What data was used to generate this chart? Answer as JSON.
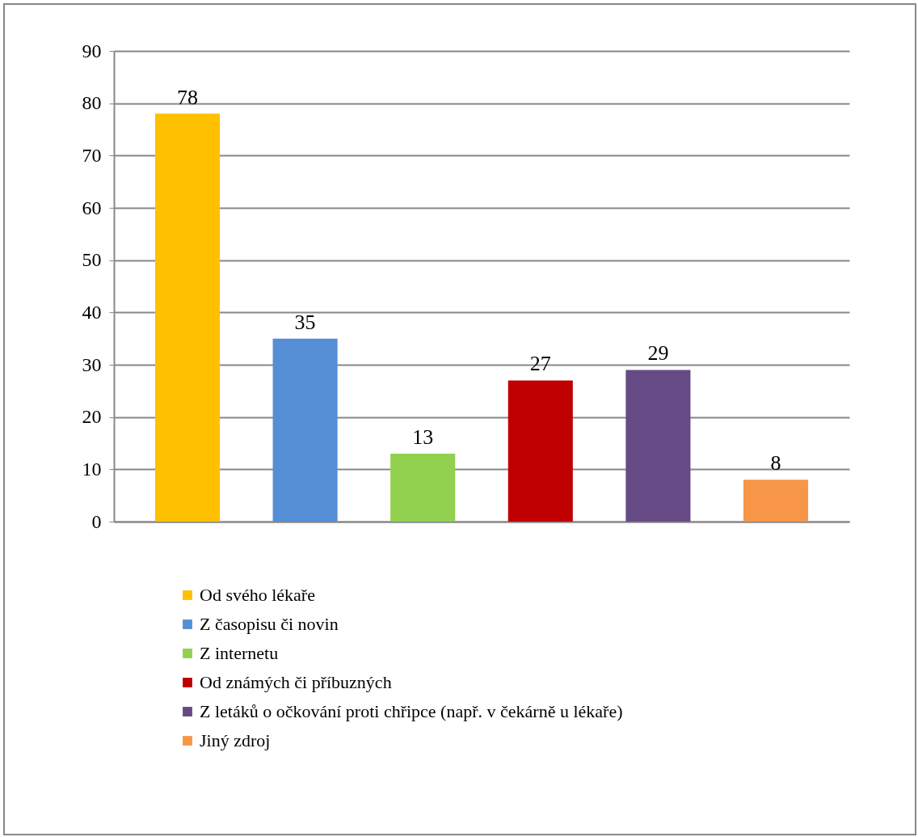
{
  "chart_data": {
    "type": "bar",
    "categories": [
      null
    ],
    "series": [
      {
        "name": "Od svého lékaře",
        "color": "#ffc000",
        "values": [
          78
        ]
      },
      {
        "name": "Z časopisu či novin",
        "color": "#558ed5",
        "values": [
          35
        ]
      },
      {
        "name": "Z internetu",
        "color": "#92d050",
        "values": [
          13
        ]
      },
      {
        "name": "Od známých či příbuzných",
        "color": "#c00000",
        "values": [
          27
        ]
      },
      {
        "name": "Z letáků o očkování proti chřipce (např. v čekárně u lékaře)",
        "color": "#664a86",
        "values": [
          29
        ]
      },
      {
        "name": "Jiný zdroj",
        "color": "#f79646",
        "values": [
          8
        ]
      }
    ],
    "ylim": [
      0,
      90
    ],
    "yticks": [
      0,
      10,
      20,
      30,
      40,
      50,
      60,
      70,
      80,
      90
    ],
    "grid": "y",
    "legend": "bottom",
    "tick_labels": "y",
    "data_labels": true
  }
}
